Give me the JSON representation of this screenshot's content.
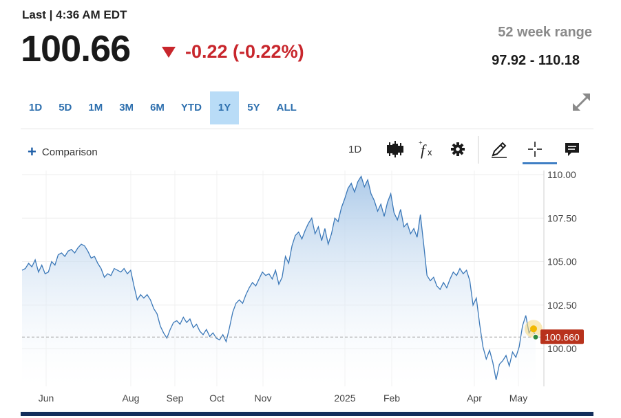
{
  "header": {
    "last_label": "Last | 4:36 AM EDT",
    "price": "100.66",
    "change": "-0.22 (-0.22%)",
    "range_label": "52 week range",
    "range_value": "97.92 - 110.18"
  },
  "tabs": [
    {
      "label": "1D",
      "active": false
    },
    {
      "label": "5D",
      "active": false
    },
    {
      "label": "1M",
      "active": false
    },
    {
      "label": "3M",
      "active": false
    },
    {
      "label": "6M",
      "active": false
    },
    {
      "label": "YTD",
      "active": false
    },
    {
      "label": "1Y",
      "active": true
    },
    {
      "label": "5Y",
      "active": false
    },
    {
      "label": "ALL",
      "active": false
    }
  ],
  "toolbar": {
    "comparison_label": "Comparison",
    "interval_label": "1D",
    "icons": [
      "candlestick-icon",
      "function-icon",
      "gear-icon",
      "pencil-icon",
      "crosshair-icon",
      "comment-icon"
    ]
  },
  "colors": {
    "line": "#3b78b8",
    "area_top": "#a9c8e8",
    "down": "#c8262c",
    "tag": "#b8321c",
    "accent": "#2d6fae"
  },
  "chart_data": {
    "type": "area",
    "x_ticks": [
      "Jun",
      "Aug",
      "Sep",
      "Oct",
      "Nov",
      "2025",
      "Feb",
      "Apr",
      "May"
    ],
    "y_ticks": [
      "110.00",
      "107.50",
      "105.00",
      "102.50",
      "100.00"
    ],
    "ylim": [
      98.0,
      110.0
    ],
    "current_value_label": "100.660",
    "current_value": 100.66,
    "grid": true,
    "series": [
      {
        "values": [
          104.5,
          104.6,
          104.9,
          104.7,
          105.1,
          104.4,
          104.8,
          104.3,
          104.4,
          105.0,
          104.8,
          105.4,
          105.5,
          105.3,
          105.6,
          105.7,
          105.5,
          105.8,
          106.0,
          105.9,
          105.6,
          105.2,
          105.3,
          104.9,
          104.6,
          104.1,
          104.3,
          104.2,
          104.6,
          104.5,
          104.4,
          104.6,
          104.3,
          104.5,
          103.6,
          102.8,
          103.1,
          102.9,
          103.1,
          102.8,
          102.3,
          102.0,
          101.3,
          100.9,
          100.6,
          101.1,
          101.5,
          101.6,
          101.4,
          101.8,
          101.5,
          101.7,
          101.2,
          101.4,
          101.0,
          100.8,
          101.1,
          100.7,
          100.9,
          100.6,
          100.5,
          100.8,
          100.4,
          101.2,
          102.1,
          102.6,
          102.8,
          102.6,
          103.1,
          103.5,
          103.8,
          103.6,
          104.0,
          104.4,
          104.2,
          104.3,
          104.0,
          104.5,
          103.7,
          104.1,
          105.3,
          104.9,
          105.9,
          106.5,
          106.7,
          106.3,
          106.8,
          107.2,
          107.5,
          106.6,
          107.0,
          106.2,
          106.9,
          106.0,
          106.6,
          107.5,
          107.3,
          108.1,
          108.6,
          109.2,
          109.5,
          109.0,
          109.6,
          109.9,
          109.3,
          109.7,
          108.9,
          108.5,
          107.9,
          108.3,
          107.6,
          108.4,
          108.9,
          107.8,
          107.4,
          108.0,
          107.0,
          107.2,
          106.6,
          106.9,
          106.4,
          107.7,
          106.0,
          104.2,
          103.9,
          104.1,
          103.6,
          103.4,
          103.8,
          103.5,
          104.0,
          104.4,
          104.2,
          104.6,
          104.3,
          104.5,
          103.9,
          102.5,
          102.9,
          101.4,
          100.1,
          99.4,
          99.9,
          99.2,
          98.2,
          99.1,
          99.3,
          99.6,
          99.0,
          99.8,
          99.5,
          100.1,
          101.3,
          101.9,
          100.9,
          101.2,
          100.66
        ]
      }
    ]
  }
}
